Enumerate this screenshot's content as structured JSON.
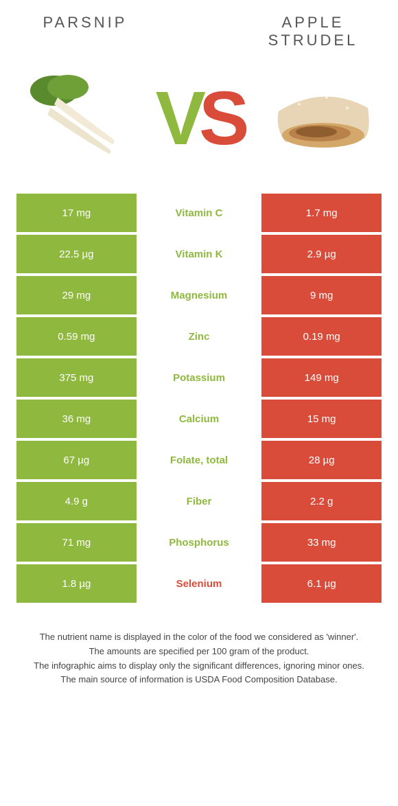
{
  "titles": {
    "left": "Parsnip",
    "right": "Apple strudel"
  },
  "vs": {
    "v": "V",
    "s": "S"
  },
  "colors": {
    "left": "#8fb93e",
    "right": "#d94c3a",
    "mid_bg": "#ffffff"
  },
  "rows": [
    {
      "left": "17 mg",
      "mid": "Vitamin C",
      "right": "1.7 mg",
      "winner": "left"
    },
    {
      "left": "22.5 µg",
      "mid": "Vitamin K",
      "right": "2.9 µg",
      "winner": "left"
    },
    {
      "left": "29 mg",
      "mid": "Magnesium",
      "right": "9 mg",
      "winner": "left"
    },
    {
      "left": "0.59 mg",
      "mid": "Zinc",
      "right": "0.19 mg",
      "winner": "left"
    },
    {
      "left": "375 mg",
      "mid": "Potassium",
      "right": "149 mg",
      "winner": "left"
    },
    {
      "left": "36 mg",
      "mid": "Calcium",
      "right": "15 mg",
      "winner": "left"
    },
    {
      "left": "67 µg",
      "mid": "Folate, total",
      "right": "28 µg",
      "winner": "left"
    },
    {
      "left": "4.9 g",
      "mid": "Fiber",
      "right": "2.2 g",
      "winner": "left"
    },
    {
      "left": "71 mg",
      "mid": "Phosphorus",
      "right": "33 mg",
      "winner": "left"
    },
    {
      "left": "1.8 µg",
      "mid": "Selenium",
      "right": "6.1 µg",
      "winner": "right"
    }
  ],
  "footer": {
    "line1": "The nutrient name is displayed in the color of the food we considered as 'winner'.",
    "line2": "The amounts are specified per 100 gram of the product.",
    "line3": "The infographic aims to display only the significant differences, ignoring minor ones.",
    "line4": "The main source of information is USDA Food Composition Database."
  }
}
